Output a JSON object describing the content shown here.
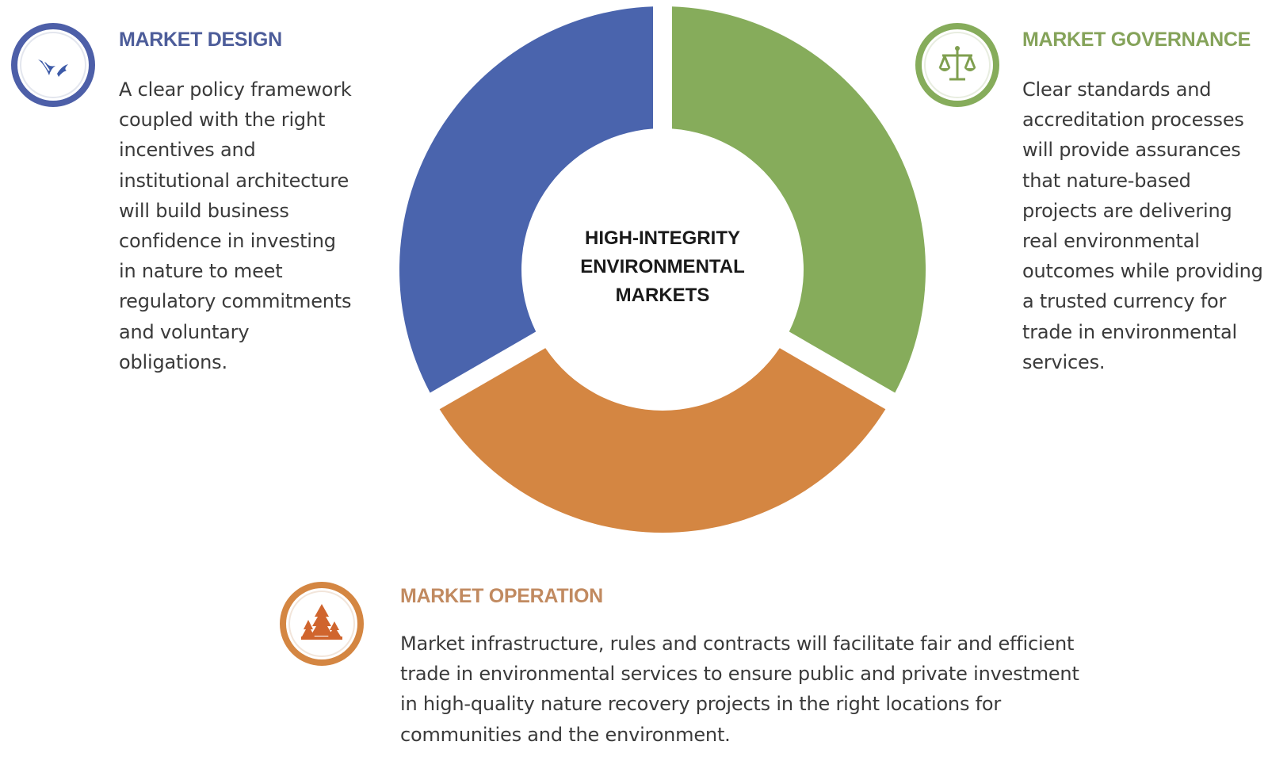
{
  "center_label": [
    "HIGH-INTEGRITY",
    "ENVIRONMENTAL",
    "MARKETS"
  ],
  "colors": {
    "design": "#4a64ad",
    "governance": "#86ac5b",
    "operation": "#d48642",
    "design_title": "#4d5d9a",
    "governance_title": "#85a35a",
    "operation_title": "#c18a60"
  },
  "segments": [
    {
      "key": "governance",
      "share": 0.3333
    },
    {
      "key": "operation",
      "share": 0.3333
    },
    {
      "key": "design",
      "share": 0.3333
    }
  ],
  "design": {
    "title": "MARKET DESIGN",
    "icon": "design-tool-icon",
    "body": "A clear policy framework coupled with the right incentives and institutional architecture will build business confidence in investing in nature to meet regulatory commitments and voluntary obligations."
  },
  "governance": {
    "title": "MARKET GOVERNANCE",
    "icon": "scales-icon",
    "body": "Clear standards and accreditation processes will provide assurances that nature-based projects are delivering real environmental outcomes while providing a trusted currency for trade in environmental services."
  },
  "operation": {
    "title": "MARKET OPERATION",
    "icon": "trees-icon",
    "body": "Market infrastructure, rules and contracts will facilitate fair and efficient trade in environmental services to ensure public and private investment in high-quality nature recovery projects in the right locations for communities and the environment."
  }
}
